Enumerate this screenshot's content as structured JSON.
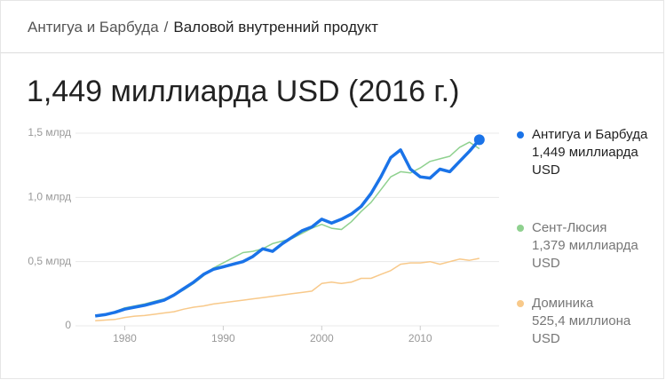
{
  "header": {
    "breadcrumb": "Антигуа и Барбуда",
    "separator": "/",
    "topic": "Валовой внутренний продукт"
  },
  "headline": "1,449 миллиарда USD (2016 г.)",
  "chart_data": {
    "type": "line",
    "x": [
      1977,
      1978,
      1979,
      1980,
      1981,
      1982,
      1983,
      1984,
      1985,
      1986,
      1987,
      1988,
      1989,
      1990,
      1991,
      1992,
      1993,
      1994,
      1995,
      1996,
      1997,
      1998,
      1999,
      2000,
      2001,
      2002,
      2003,
      2004,
      2005,
      2006,
      2007,
      2008,
      2009,
      2010,
      2011,
      2012,
      2013,
      2014,
      2015,
      2016
    ],
    "xlim": [
      1975,
      2018
    ],
    "xticks": [
      1980,
      1990,
      2000,
      2010
    ],
    "ylim": [
      0,
      1.5
    ],
    "yticks": [
      0,
      {
        "value": 0.5,
        "label": "0,5 млрд"
      },
      {
        "value": 1.0,
        "label": "1,0 млрд"
      },
      {
        "value": 1.5,
        "label": "1,5 млрд"
      }
    ],
    "grid": true,
    "series": [
      {
        "name": "Антигуа и Барбуда",
        "color": "#1a73e8",
        "legend_value": "1,449 миллиарда USD",
        "values": [
          0.077,
          0.087,
          0.105,
          0.13,
          0.145,
          0.16,
          0.18,
          0.2,
          0.24,
          0.29,
          0.34,
          0.4,
          0.44,
          0.46,
          0.48,
          0.5,
          0.54,
          0.6,
          0.58,
          0.64,
          0.69,
          0.74,
          0.77,
          0.83,
          0.8,
          0.83,
          0.87,
          0.93,
          1.03,
          1.16,
          1.31,
          1.37,
          1.22,
          1.16,
          1.15,
          1.22,
          1.2,
          1.28,
          1.36,
          1.449
        ]
      },
      {
        "name": "Сент-Люсия",
        "color": "#8fd18f",
        "legend_value": "1,379 миллиарда USD",
        "values": [
          0.08,
          0.09,
          0.11,
          0.14,
          0.155,
          0.17,
          0.19,
          0.21,
          0.24,
          0.28,
          0.33,
          0.39,
          0.45,
          0.49,
          0.53,
          0.57,
          0.58,
          0.6,
          0.64,
          0.66,
          0.68,
          0.72,
          0.76,
          0.79,
          0.76,
          0.75,
          0.81,
          0.89,
          0.96,
          1.06,
          1.16,
          1.2,
          1.19,
          1.23,
          1.28,
          1.3,
          1.32,
          1.39,
          1.43,
          1.379
        ]
      },
      {
        "name": "Доминика",
        "color": "#f8c98a",
        "legend_value": "525,4 миллиона USD",
        "values": [
          0.04,
          0.045,
          0.05,
          0.065,
          0.075,
          0.08,
          0.09,
          0.1,
          0.11,
          0.13,
          0.145,
          0.155,
          0.17,
          0.18,
          0.19,
          0.2,
          0.21,
          0.22,
          0.23,
          0.24,
          0.25,
          0.26,
          0.27,
          0.33,
          0.34,
          0.33,
          0.34,
          0.37,
          0.37,
          0.4,
          0.43,
          0.48,
          0.49,
          0.49,
          0.5,
          0.48,
          0.5,
          0.52,
          0.51,
          0.5254
        ]
      }
    ]
  }
}
